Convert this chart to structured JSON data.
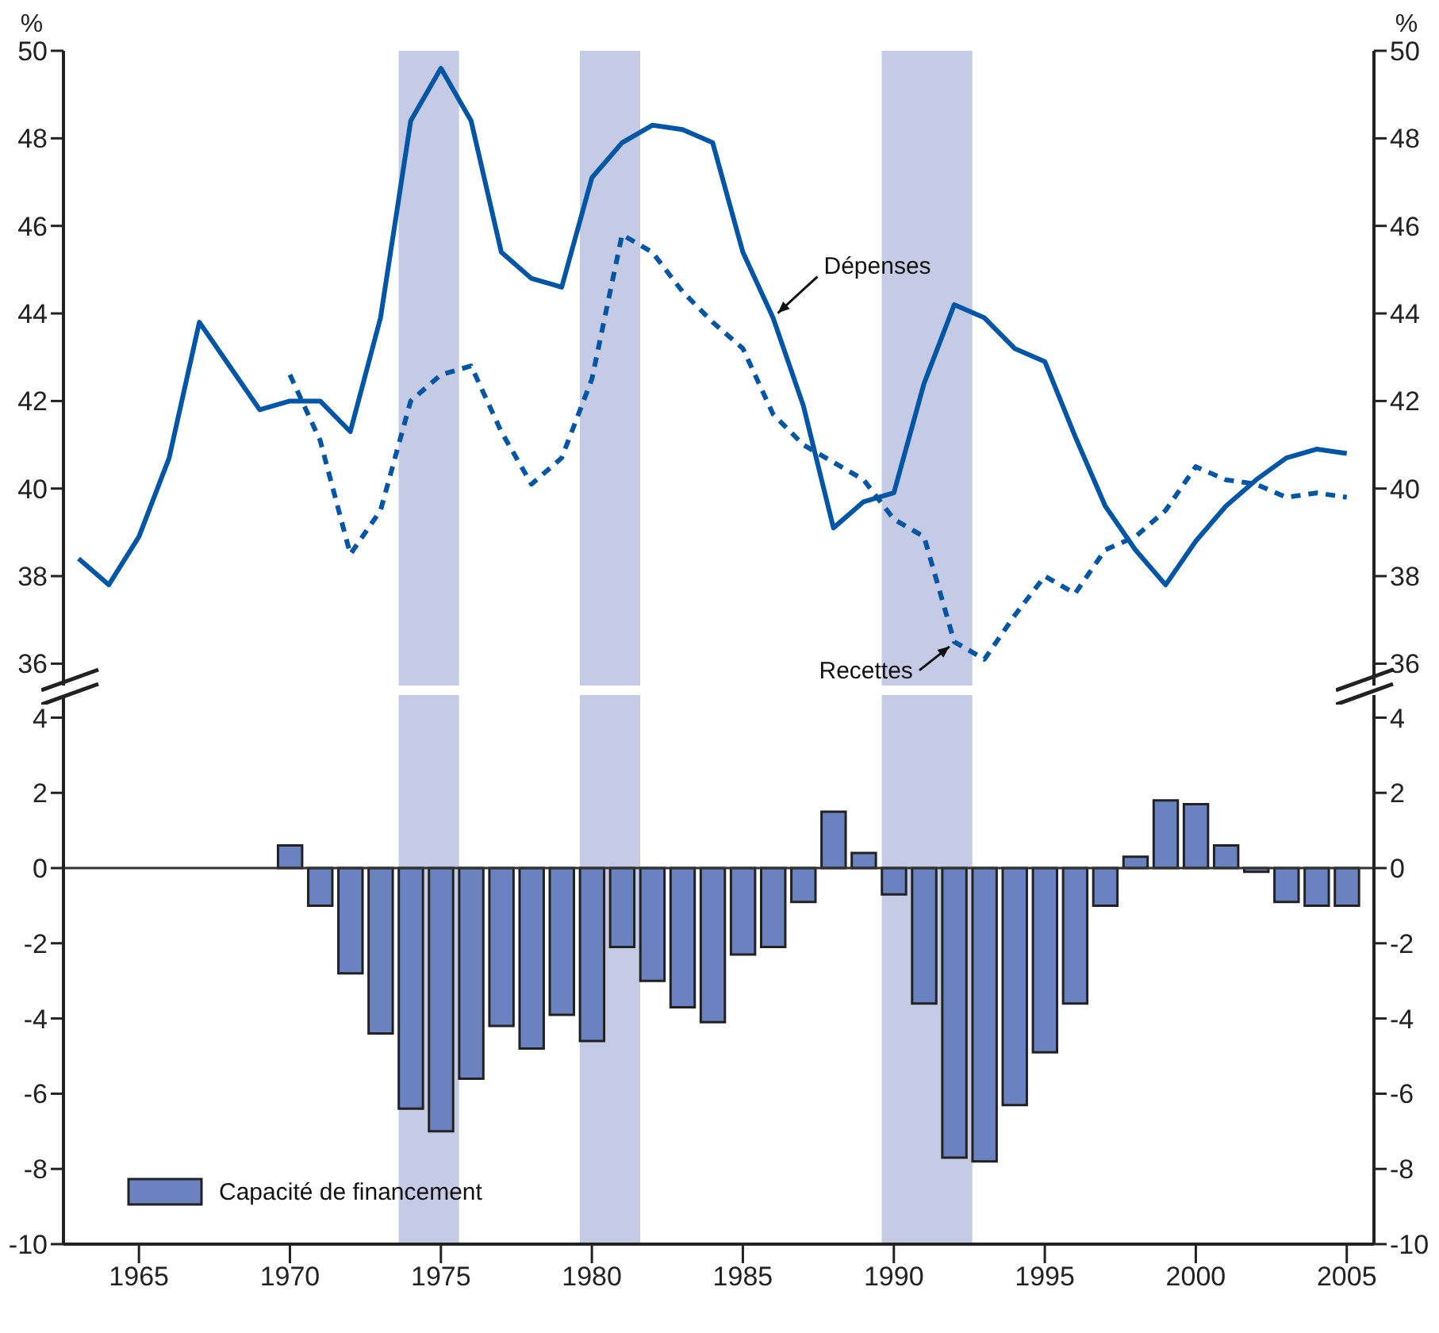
{
  "chart_data": [
    {
      "type": "line",
      "x": [
        1963,
        1964,
        1965,
        1966,
        1967,
        1968,
        1969,
        1970,
        1971,
        1972,
        1973,
        1974,
        1975,
        1976,
        1977,
        1978,
        1979,
        1980,
        1981,
        1982,
        1983,
        1984,
        1985,
        1986,
        1987,
        1988,
        1989,
        1990,
        1991,
        1992,
        1993,
        1994,
        1995,
        1996,
        1997,
        1998,
        1999,
        2000,
        2001,
        2002,
        2003,
        2004,
        2005
      ],
      "series": [
        {
          "color": "#0055a4",
          "line_style": "solid",
          "values": [
            38.4,
            37.8,
            38.9,
            40.7,
            43.8,
            42.8,
            41.8,
            42.0,
            42.0,
            41.3,
            43.9,
            48.4,
            49.6,
            48.4,
            45.4,
            44.8,
            44.6,
            47.1,
            47.9,
            48.3,
            48.2,
            47.9,
            45.4,
            43.9,
            41.9,
            39.1,
            39.7,
            39.9,
            42.4,
            44.2,
            43.9,
            43.2,
            42.9,
            41.2,
            39.6,
            38.6,
            37.8,
            38.8,
            39.6,
            40.2,
            40.7,
            40.9,
            40.8
          ]
        },
        {
          "color": "#0055a4",
          "line_style": "dashed",
          "values": [
            null,
            null,
            null,
            null,
            null,
            null,
            null,
            42.6,
            41.1,
            38.5,
            39.5,
            42.0,
            42.6,
            42.8,
            41.3,
            40.1,
            40.7,
            42.5,
            45.8,
            45.4,
            44.5,
            43.8,
            43.2,
            41.7,
            41.0,
            40.6,
            40.2,
            39.3,
            38.9,
            36.5,
            36.1,
            37.1,
            38.0,
            37.6,
            38.6,
            38.9,
            39.5,
            40.5,
            40.2,
            40.1,
            39.8,
            39.9,
            39.8
          ]
        }
      ],
      "ylabel": "%",
      "y2label": "%",
      "xlim": [
        1962.5,
        2005.9
      ],
      "ylim": [
        35.5,
        50
      ],
      "yticks": [
        36,
        38,
        40,
        42,
        44,
        46,
        48,
        50
      ],
      "y2lim": [
        35.5,
        50
      ],
      "y2ticks": [
        36,
        38,
        40,
        42,
        44,
        46,
        48,
        50
      ],
      "tick_labels": "y",
      "bands": [
        {
          "axis": "x",
          "from": 1973.6,
          "to": 1975.6,
          "color": "#c5cbe4"
        },
        {
          "axis": "x",
          "from": 1979.6,
          "to": 1981.6,
          "color": "#c5cbe4"
        },
        {
          "axis": "x",
          "from": 1989.6,
          "to": 1992.6,
          "color": "#c5cbe4"
        }
      ],
      "annotations": [
        {
          "text": "Dépenses",
          "x": 1986,
          "y": 43.9
        },
        {
          "text": "Recettes",
          "x": 1992,
          "y": 36.5
        }
      ],
      "grid": false,
      "legend": false,
      "marker": "none"
    },
    {
      "type": "bar",
      "x": [
        1970,
        1971,
        1972,
        1973,
        1974,
        1975,
        1976,
        1977,
        1978,
        1979,
        1980,
        1981,
        1982,
        1983,
        1984,
        1985,
        1986,
        1987,
        1988,
        1989,
        1990,
        1991,
        1992,
        1993,
        1994,
        1995,
        1996,
        1997,
        1998,
        1999,
        2000,
        2001,
        2002,
        2003,
        2004,
        2005
      ],
      "series": [
        {
          "name": "Capacité de financement",
          "color": "#6a82c0",
          "values": [
            0.6,
            -1.0,
            -2.8,
            -4.4,
            -6.4,
            -7.0,
            -5.6,
            -4.2,
            -4.8,
            -3.9,
            -4.6,
            -2.1,
            -3.0,
            -3.7,
            -4.1,
            -2.3,
            -2.1,
            -0.9,
            1.5,
            0.4,
            -0.7,
            -3.6,
            -7.7,
            -7.8,
            -6.3,
            -4.9,
            -3.6,
            -1.0,
            0.3,
            1.8,
            1.7,
            0.6,
            -0.1,
            -0.9,
            -1.0,
            -1.0
          ]
        }
      ],
      "xlim": [
        1962.5,
        2005.9
      ],
      "xticks": [
        1965,
        1970,
        1975,
        1980,
        1985,
        1990,
        1995,
        2000,
        2005
      ],
      "ylim": [
        -10,
        4.6
      ],
      "yticks": [
        -10,
        -8,
        -6,
        -4,
        -2,
        0,
        2,
        4
      ],
      "y2lim": [
        -10,
        4.6
      ],
      "y2ticks": [
        -10,
        -8,
        -6,
        -4,
        -2,
        0,
        2,
        4
      ],
      "bands": [
        {
          "axis": "x",
          "from": 1973.6,
          "to": 1975.6,
          "color": "#c5cbe4"
        },
        {
          "axis": "x",
          "from": 1979.6,
          "to": 1981.6,
          "color": "#c5cbe4"
        },
        {
          "axis": "x",
          "from": 1989.6,
          "to": 1992.6,
          "color": "#c5cbe4"
        }
      ],
      "ref_lines": [
        {
          "axis": "y",
          "value": 0,
          "color": "#333333"
        }
      ],
      "grid": false,
      "legend": "bottom left"
    }
  ]
}
